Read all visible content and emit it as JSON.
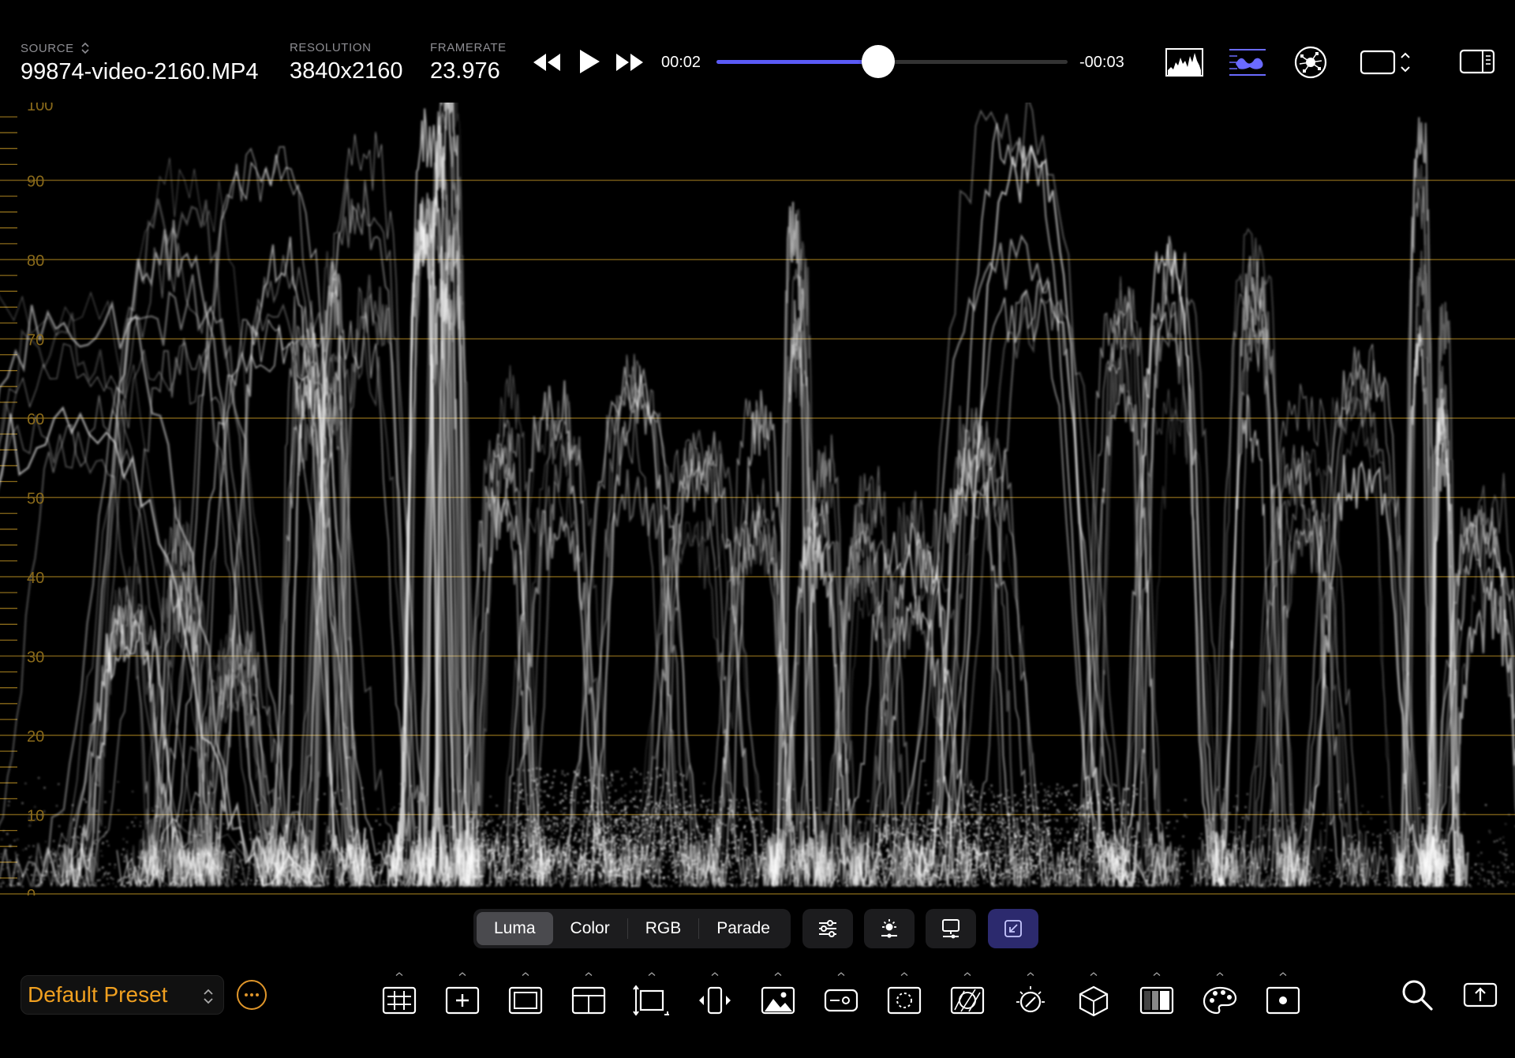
{
  "header": {
    "source_label": "SOURCE",
    "source_value": "99874-video-2160.MP4",
    "resolution_label": "RESOLUTION",
    "resolution_value": "3840x2160",
    "framerate_label": "FRAMERATE",
    "framerate_value": "23.976"
  },
  "playback": {
    "elapsed": "00:02",
    "remaining": "-00:03",
    "progress": 0.46,
    "accent_color": "#5b5bf7"
  },
  "view_icons": [
    "histogram-icon",
    "waveform-icon",
    "vectorscope-icon",
    "aspect-frame-icon",
    "sidebar-toggle-icon"
  ],
  "scope": {
    "type": "luma-waveform",
    "scale_labels": [
      "100",
      "90",
      "80",
      "70",
      "60",
      "50",
      "40",
      "30",
      "20",
      "10",
      "0"
    ],
    "graticule_color": "#8a6a1a"
  },
  "modes": {
    "items": [
      "Luma",
      "Color",
      "RGB",
      "Parade"
    ],
    "active": "Luma"
  },
  "scope_buttons": [
    "sliders-icon",
    "brightness-icon",
    "display-icon",
    "collapse-icon"
  ],
  "preset": {
    "name": "Default Preset",
    "color": "#f0a020"
  },
  "tools": [
    "grid-icon",
    "crosshair-box-icon",
    "frame-icon",
    "layout-icon",
    "resize-icon",
    "horizontal-flip-icon",
    "image-icon",
    "false-color-icon",
    "focus-circle-icon",
    "zebra-icon",
    "exposure-dial-icon",
    "lut-cube-icon",
    "gradient-bars-icon",
    "palette-icon",
    "spot-meter-icon"
  ],
  "right_tools": [
    "search-icon",
    "export-icon"
  ]
}
